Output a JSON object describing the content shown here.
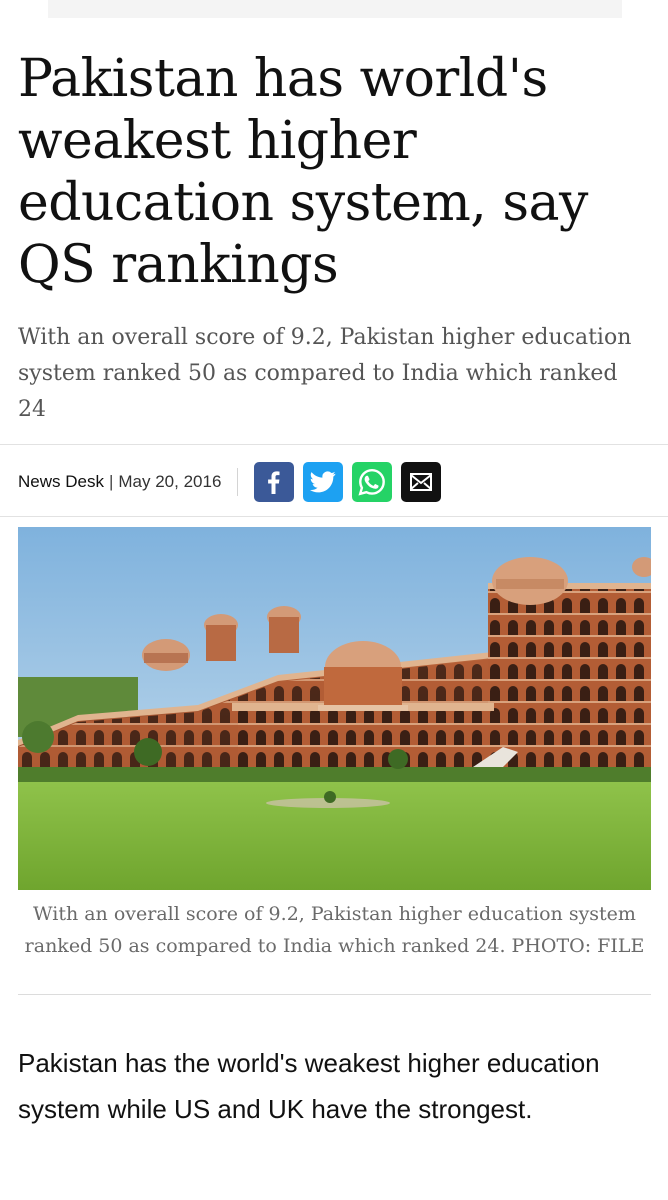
{
  "article": {
    "headline": "Pakistan has world's weakest higher education system, say QS rankings",
    "subheadline": "With an overall score of 9.2, Pakistan higher education system ranked 50 as compared to India which ranked 24",
    "byline": {
      "author": "News Desk",
      "separator": "|",
      "date": "May 20, 2016"
    },
    "share": {
      "icons": [
        "facebook-icon",
        "twitter-icon",
        "whatsapp-icon",
        "email-icon"
      ]
    },
    "image": {
      "caption": "With an overall score of 9.2, Pakistan higher education system ranked 50 as compared to India which ranked 24. PHOTO: FILE"
    },
    "body": "Pakistan has the world's weakest higher education system while US and UK have the strongest."
  },
  "colors": {
    "facebook": "#3b5998",
    "twitter": "#1da1f2",
    "whatsapp": "#25d366",
    "email": "#111111"
  }
}
